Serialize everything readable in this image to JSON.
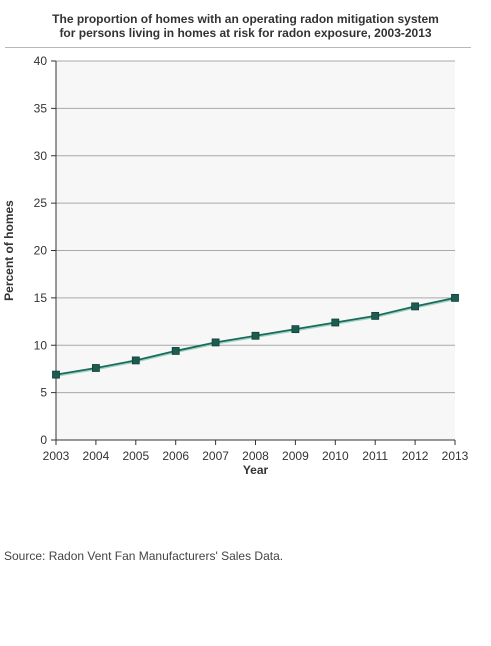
{
  "title_line1": "The proportion of homes with an operating radon mitigation system",
  "title_line2": "for persons living in homes at risk for radon exposure, 2003-2013",
  "source": "Source: Radon Vent Fan Manufacturers' Sales Data.",
  "chart_data": {
    "type": "line",
    "title": "The proportion of homes with an operating radon mitigation system for persons living in homes at risk for radon exposure, 2003-2013",
    "xlabel": "Year",
    "ylabel": "Percent of homes",
    "x": [
      2003,
      2004,
      2005,
      2006,
      2007,
      2008,
      2009,
      2010,
      2011,
      2012,
      2013
    ],
    "series": [
      {
        "values": [
          6.9,
          7.6,
          8.4,
          9.4,
          10.3,
          11.0,
          11.7,
          12.4,
          13.1,
          14.1,
          15.0
        ]
      }
    ],
    "ylim": [
      0,
      40
    ],
    "yticks": [
      0,
      5,
      10,
      15,
      20,
      25,
      30,
      35,
      40
    ],
    "grid": true,
    "line_color": "#1a6b5c",
    "marker_color": "#1d5c50",
    "plot_background": "#f7f7f7"
  }
}
